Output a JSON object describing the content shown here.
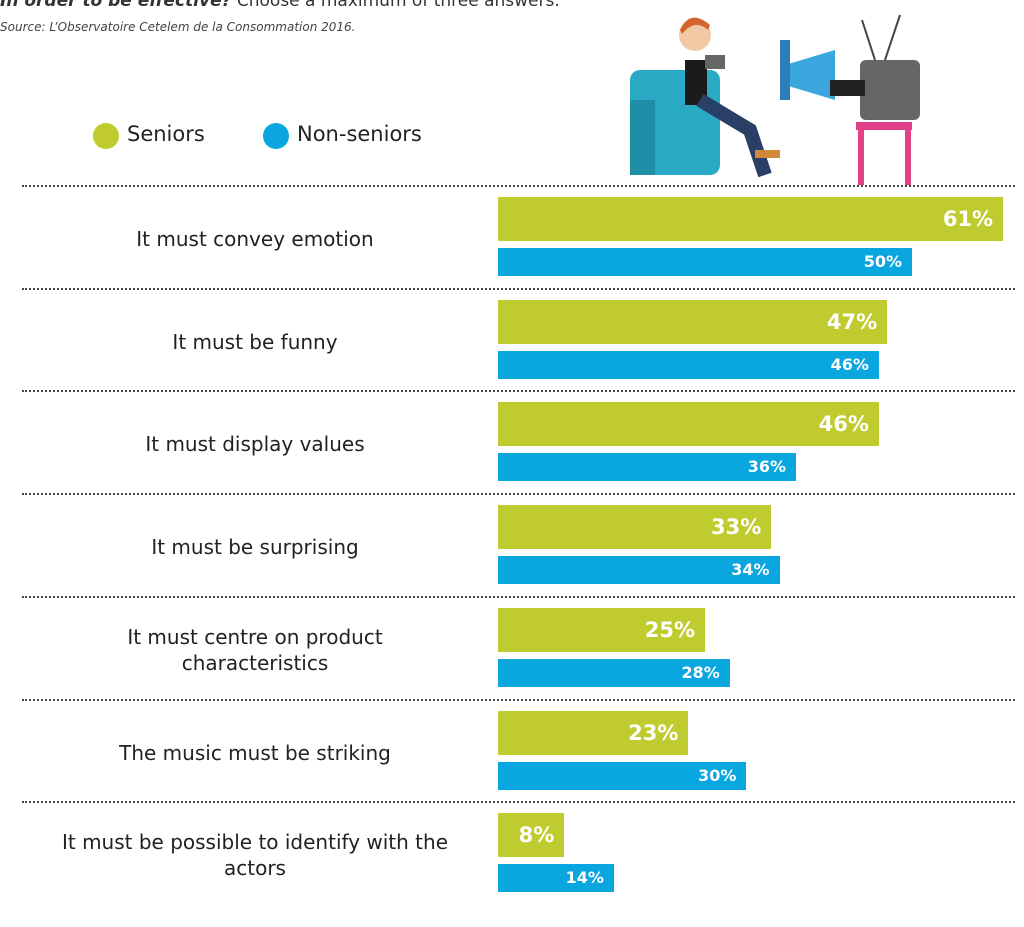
{
  "chart_data": {
    "type": "bar",
    "orientation": "horizontal",
    "title": "In order to be effective?",
    "subtitle": "Choose a maximum of three answers.",
    "source": "Source: L’Observatoire Cetelem de la Consommation 2016.",
    "categories": [
      "It must convey emotion",
      "It must be funny",
      "It must display values",
      "It must be surprising",
      "It must centre on product characteristics",
      "The music must be striking",
      "It must be possible to identify with the actors"
    ],
    "series": [
      {
        "name": "Seniors",
        "color": "#bfcb2e",
        "values": [
          61,
          47,
          46,
          33,
          25,
          23,
          8
        ],
        "value_labels": [
          "61%",
          "47%",
          "46%",
          "33%",
          "25%",
          "23%",
          "8%"
        ]
      },
      {
        "name": "Non-seniors",
        "color": "#0aa6e0",
        "values": [
          50,
          46,
          36,
          34,
          28,
          30,
          14
        ],
        "value_labels": [
          "50%",
          "46%",
          "36%",
          "34%",
          "28%",
          "30%",
          "14%"
        ]
      }
    ]
  }
}
